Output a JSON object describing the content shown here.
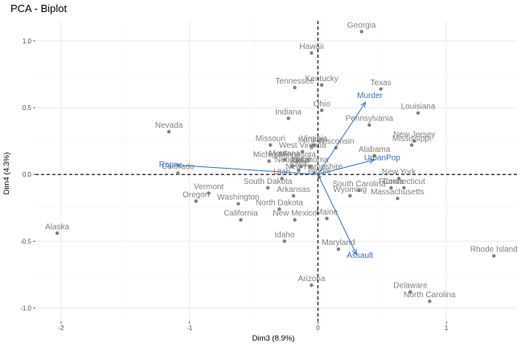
{
  "chart_data": {
    "type": "scatter",
    "title": "PCA - Biplot",
    "xlabel": "Dim3 (8.9%)",
    "ylabel": "Dim4 (4.3%)",
    "xlim": [
      -2.2,
      1.55
    ],
    "ylim": [
      -1.1,
      1.15
    ],
    "x_ticks": [
      {
        "value": -2,
        "label": "-2"
      },
      {
        "value": -1,
        "label": "-1"
      },
      {
        "value": 0,
        "label": "0"
      },
      {
        "value": 1,
        "label": "1"
      }
    ],
    "y_ticks": [
      {
        "value": 1.0,
        "label": "1.0"
      },
      {
        "value": 0.5,
        "label": "0.5"
      },
      {
        "value": 0.0,
        "label": "0.0"
      },
      {
        "value": -0.5,
        "label": "-0.5"
      },
      {
        "value": -1.0,
        "label": "-1.0"
      }
    ],
    "grid": true,
    "reference_lines": {
      "x": 0,
      "y": 0,
      "style": "dashed"
    },
    "colors": {
      "points": "#808080",
      "variables": "#3b6fb6"
    },
    "points": [
      {
        "label": "Georgia",
        "x": 0.34,
        "y": 1.07
      },
      {
        "label": "Hawaii",
        "x": -0.05,
        "y": 0.91
      },
      {
        "label": "Kentucky",
        "x": 0.03,
        "y": 0.67
      },
      {
        "label": "Tennessee",
        "x": -0.18,
        "y": 0.65
      },
      {
        "label": "Texas",
        "x": 0.49,
        "y": 0.64
      },
      {
        "label": "Ohio",
        "x": 0.03,
        "y": 0.48
      },
      {
        "label": "Louisiana",
        "x": 0.78,
        "y": 0.46
      },
      {
        "label": "Indiana",
        "x": -0.23,
        "y": 0.42
      },
      {
        "label": "Pennsylvania",
        "x": 0.4,
        "y": 0.37
      },
      {
        "label": "Nevada",
        "x": -1.16,
        "y": 0.32
      },
      {
        "label": "New Jersey",
        "x": 0.75,
        "y": 0.25
      },
      {
        "label": "Mississippi",
        "x": 0.73,
        "y": 0.22
      },
      {
        "label": "Missouri",
        "x": -0.37,
        "y": 0.22
      },
      {
        "label": "Kansas",
        "x": -0.05,
        "y": 0.21
      },
      {
        "label": "Virginia",
        "x": -0.03,
        "y": 0.22
      },
      {
        "label": "Wisconsin",
        "x": 0.14,
        "y": 0.2
      },
      {
        "label": "Alabama",
        "x": 0.44,
        "y": 0.14
      },
      {
        "label": "West Virginia",
        "x": -0.12,
        "y": 0.17
      },
      {
        "label": "Michigan",
        "x": -0.38,
        "y": 0.1
      },
      {
        "label": "Montana",
        "x": -0.26,
        "y": 0.11
      },
      {
        "label": "Minnesota",
        "x": -0.16,
        "y": 0.1
      },
      {
        "label": "Nebraska",
        "x": -0.2,
        "y": 0.06
      },
      {
        "label": "Oklahoma",
        "x": -0.06,
        "y": 0.06
      },
      {
        "label": "Idaho",
        "x": -0.13,
        "y": 0.06
      },
      {
        "label": "Colorado",
        "x": -1.09,
        "y": 0.01
      },
      {
        "label": "New Hampshire",
        "x": -0.03,
        "y": 0.01
      },
      {
        "label": "Iowa",
        "x": -0.15,
        "y": 0.03
      },
      {
        "label": "Utah",
        "x": -0.28,
        "y": -0.03
      },
      {
        "label": "Illinois",
        "x": 0.01,
        "y": -0.02
      },
      {
        "label": "South Dakota",
        "x": -0.39,
        "y": -0.1
      },
      {
        "label": "New York",
        "x": 0.63,
        "y": -0.03
      },
      {
        "label": "Florida",
        "x": 0.57,
        "y": -0.1
      },
      {
        "label": "Connecticut",
        "x": 0.67,
        "y": -0.1
      },
      {
        "label": "Vermont",
        "x": -0.85,
        "y": -0.14
      },
      {
        "label": "South Carolina",
        "x": 0.32,
        "y": -0.12
      },
      {
        "label": "Wyoming",
        "x": 0.25,
        "y": -0.16
      },
      {
        "label": "Massachusetts",
        "x": 0.62,
        "y": -0.18
      },
      {
        "label": "Arkansas",
        "x": -0.19,
        "y": -0.16
      },
      {
        "label": "Oregon",
        "x": -0.95,
        "y": -0.2
      },
      {
        "label": "Washington",
        "x": -0.62,
        "y": -0.22
      },
      {
        "label": "North Dakota",
        "x": -0.3,
        "y": -0.26
      },
      {
        "label": "California",
        "x": -0.6,
        "y": -0.34
      },
      {
        "label": "New Mexico",
        "x": -0.18,
        "y": -0.34
      },
      {
        "label": "Maine",
        "x": 0.07,
        "y": -0.33
      },
      {
        "label": "Alaska",
        "x": -2.03,
        "y": -0.44
      },
      {
        "label": "Idaho",
        "x": -0.26,
        "y": -0.5
      },
      {
        "label": "Maryland",
        "x": 0.16,
        "y": -0.56
      },
      {
        "label": "Rhode Island",
        "x": 1.37,
        "y": -0.61
      },
      {
        "label": "Arizona",
        "x": -0.05,
        "y": -0.83
      },
      {
        "label": "Delaware",
        "x": 0.72,
        "y": -0.88
      },
      {
        "label": "North Carolina",
        "x": 0.87,
        "y": -0.95
      }
    ],
    "variables": [
      {
        "label": "Murder",
        "x": 0.37,
        "y": 0.54
      },
      {
        "label": "UrbanPop",
        "x": 0.44,
        "y": 0.11
      },
      {
        "label": "Rape",
        "x": -1.1,
        "y": 0.07
      },
      {
        "label": "Assault",
        "x": 0.3,
        "y": -0.6
      }
    ]
  }
}
